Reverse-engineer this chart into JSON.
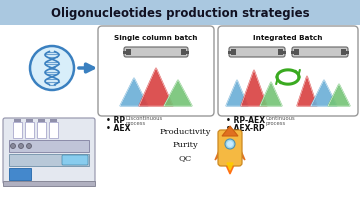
{
  "title": "Oligonucleotides production strategies",
  "title_bg": "#aac8e0",
  "title_fontsize": 8.5,
  "box1_label": "Single column batch",
  "box2_label": "Integrated Batch",
  "bullet1a": "• RP",
  "bullet1b": "• AEX",
  "bullet1_sub": "Discontinuous\nprocess",
  "bullet2a": "• RP-AEX",
  "bullet2b": "• AEX-RP",
  "bullet2_sub": "Continuous\nprocess",
  "prod_text": "Productivity\nPurity\nQC",
  "peak_colors_left": [
    "#6baed6",
    "#d94040",
    "#74c476"
  ],
  "peak_colors_right1": [
    "#6baed6",
    "#d94040",
    "#74c476"
  ],
  "peak_colors_right2": [
    "#d94040",
    "#6baed6",
    "#74c476"
  ],
  "arrow_color": "#3a80c0",
  "recycle_color": "#3aaa20",
  "dna_color": "#3a80c0",
  "box_fc": "#ffffff",
  "box_ec": "#999999",
  "col_fc": "#c8c8c8",
  "col_ec": "#666666",
  "col_dark": "#555555"
}
